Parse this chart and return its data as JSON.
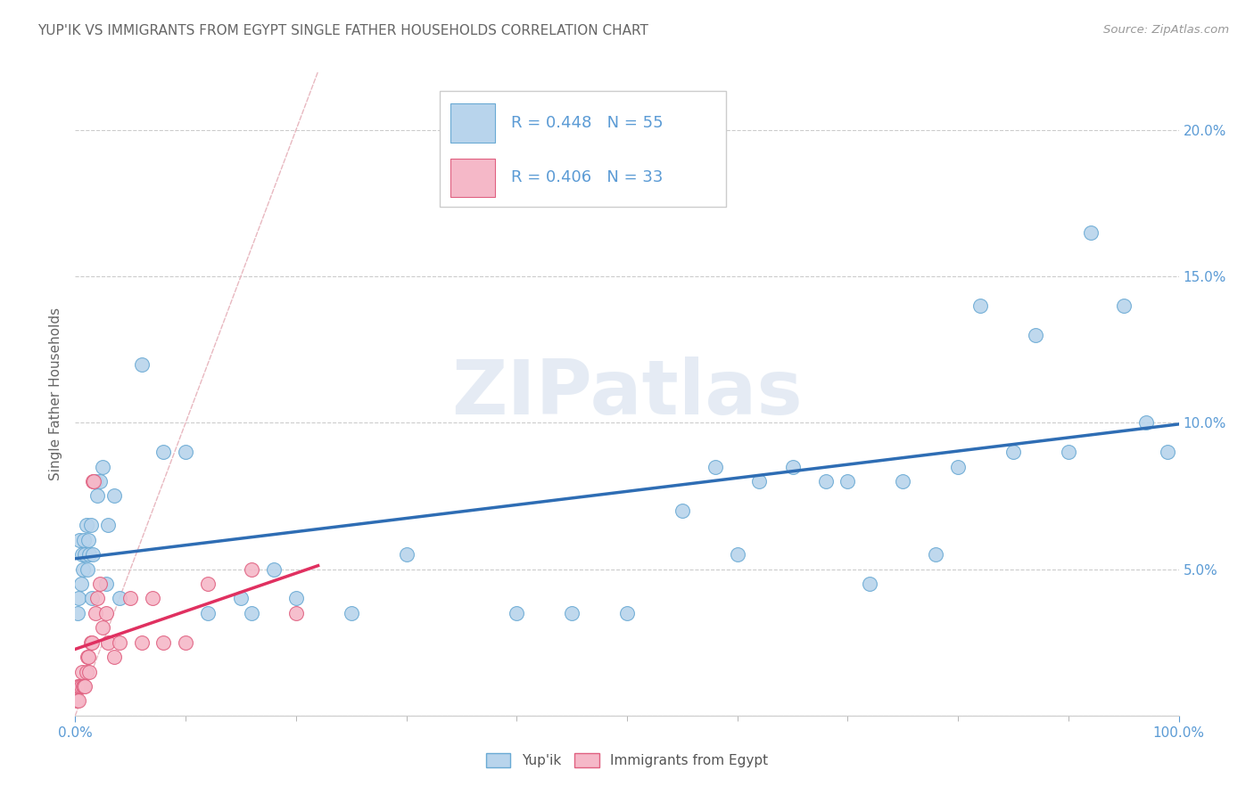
{
  "title": "YUP'IK VS IMMIGRANTS FROM EGYPT SINGLE FATHER HOUSEHOLDS CORRELATION CHART",
  "source": "Source: ZipAtlas.com",
  "ylabel_label": "Single Father Households",
  "watermark": "ZIPatlas",
  "background_color": "#ffffff",
  "plot_bg_color": "#ffffff",
  "grid_color": "#cccccc",
  "title_color": "#666666",
  "axis_color": "#5b9bd5",
  "legend_r1": "R = 0.448",
  "legend_n1": "N = 55",
  "legend_r2": "R = 0.406",
  "legend_n2": "N = 33",
  "series1_color": "#b8d4ec",
  "series1_edge": "#6aaad4",
  "series2_color": "#f5b8c8",
  "series2_edge": "#e06080",
  "trend1_color": "#2e6db4",
  "trend2_color": "#e03060",
  "diagonal_color": "#e8b8c0",
  "xlim": [
    0.0,
    1.0
  ],
  "ylim": [
    0.0,
    0.22
  ],
  "yticks": [
    0.0,
    0.05,
    0.1,
    0.15,
    0.2
  ],
  "ytick_labels": [
    "",
    "5.0%",
    "10.0%",
    "15.0%",
    "20.0%"
  ],
  "series1_name": "Yup'ik",
  "series2_name": "Immigrants from Egypt",
  "yupik_x": [
    0.002,
    0.003,
    0.004,
    0.005,
    0.006,
    0.007,
    0.008,
    0.009,
    0.01,
    0.011,
    0.012,
    0.013,
    0.014,
    0.015,
    0.016,
    0.018,
    0.02,
    0.022,
    0.025,
    0.028,
    0.03,
    0.035,
    0.04,
    0.06,
    0.08,
    0.1,
    0.12,
    0.15,
    0.16,
    0.18,
    0.2,
    0.25,
    0.3,
    0.4,
    0.45,
    0.5,
    0.55,
    0.58,
    0.6,
    0.62,
    0.65,
    0.68,
    0.7,
    0.72,
    0.75,
    0.78,
    0.8,
    0.82,
    0.85,
    0.87,
    0.9,
    0.92,
    0.95,
    0.97,
    0.99
  ],
  "yupik_y": [
    0.035,
    0.04,
    0.06,
    0.045,
    0.055,
    0.05,
    0.06,
    0.055,
    0.065,
    0.05,
    0.06,
    0.055,
    0.065,
    0.04,
    0.055,
    0.08,
    0.075,
    0.08,
    0.085,
    0.045,
    0.065,
    0.075,
    0.04,
    0.12,
    0.09,
    0.09,
    0.035,
    0.04,
    0.035,
    0.05,
    0.04,
    0.035,
    0.055,
    0.035,
    0.035,
    0.035,
    0.07,
    0.085,
    0.055,
    0.08,
    0.085,
    0.08,
    0.08,
    0.045,
    0.08,
    0.055,
    0.085,
    0.14,
    0.09,
    0.13,
    0.09,
    0.165,
    0.14,
    0.1,
    0.09
  ],
  "egypt_x": [
    0.001,
    0.002,
    0.003,
    0.004,
    0.005,
    0.006,
    0.007,
    0.008,
    0.009,
    0.01,
    0.011,
    0.012,
    0.013,
    0.014,
    0.015,
    0.016,
    0.017,
    0.018,
    0.02,
    0.022,
    0.025,
    0.028,
    0.03,
    0.035,
    0.04,
    0.05,
    0.06,
    0.07,
    0.08,
    0.1,
    0.12,
    0.16,
    0.2
  ],
  "egypt_y": [
    0.005,
    0.01,
    0.005,
    0.01,
    0.01,
    0.015,
    0.01,
    0.01,
    0.01,
    0.015,
    0.02,
    0.02,
    0.015,
    0.025,
    0.025,
    0.08,
    0.08,
    0.035,
    0.04,
    0.045,
    0.03,
    0.035,
    0.025,
    0.02,
    0.025,
    0.04,
    0.025,
    0.04,
    0.025,
    0.025,
    0.045,
    0.05,
    0.035
  ]
}
